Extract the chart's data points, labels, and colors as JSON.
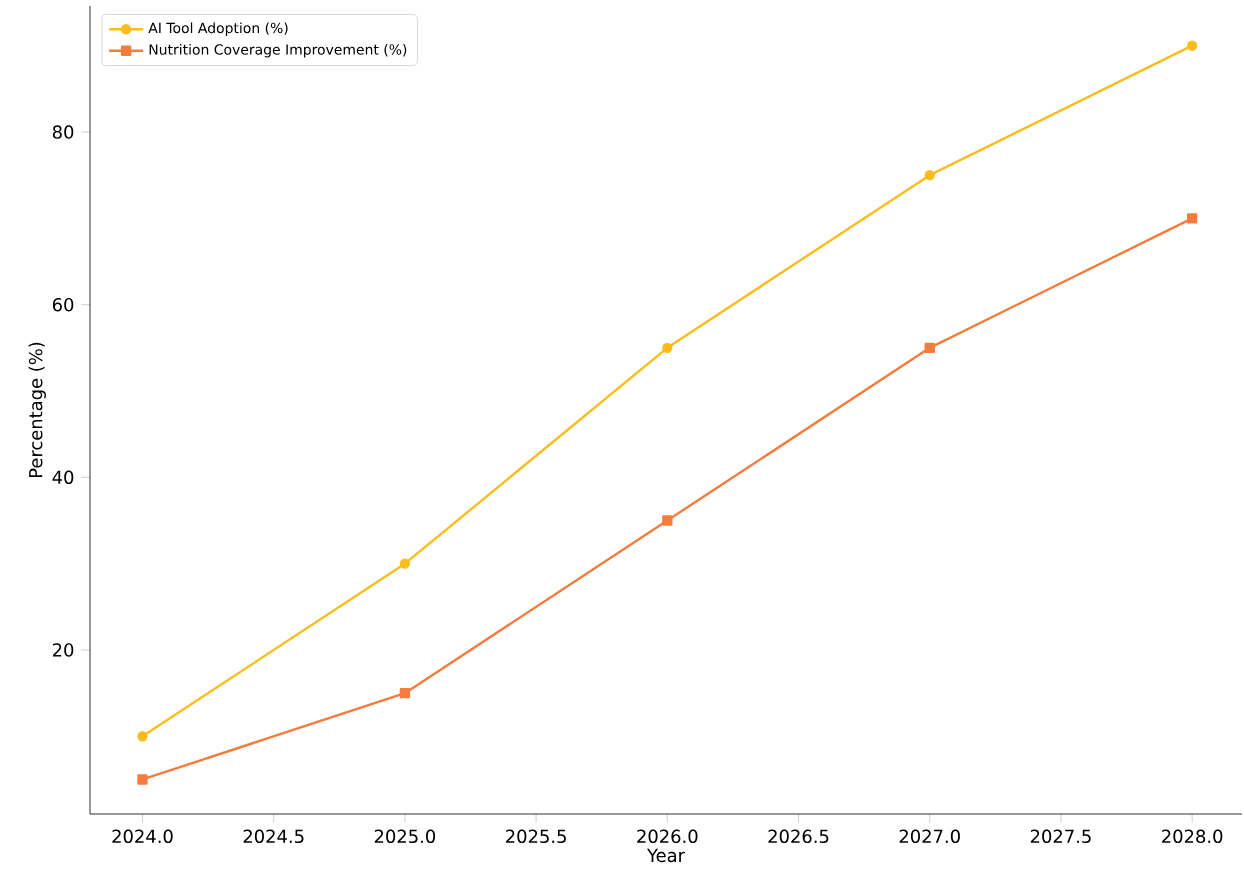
{
  "chart_data": {
    "type": "line",
    "xlabel": "Year",
    "ylabel": "Percentage (%)",
    "x": [
      2024,
      2025,
      2026,
      2027,
      2028
    ],
    "series": [
      {
        "name": "AI Tool Adoption (%)",
        "color": "#fbbc1c",
        "marker": "circle",
        "values": [
          10,
          30,
          55,
          75,
          90
        ]
      },
      {
        "name": "Nutrition Coverage Improvement (%)",
        "color": "#f47c3c",
        "marker": "square",
        "values": [
          5,
          15,
          35,
          55,
          70
        ]
      }
    ],
    "xlim": [
      2023.8,
      2028.19
    ],
    "ylim": [
      1,
      94.6
    ],
    "xticks": [
      {
        "value": 2024,
        "label": "2024.0"
      },
      {
        "value": 2024.5,
        "label": "2024.5"
      },
      {
        "value": 2025,
        "label": "2025.0"
      },
      {
        "value": 2025.5,
        "label": "2025.5"
      },
      {
        "value": 2026,
        "label": "2026.0"
      },
      {
        "value": 2026.5,
        "label": "2026.5"
      },
      {
        "value": 2027,
        "label": "2027.0"
      },
      {
        "value": 2027.5,
        "label": "2027.5"
      },
      {
        "value": 2028,
        "label": "2028.0"
      }
    ],
    "yticks": [
      20,
      40,
      60,
      80
    ],
    "legend": "top left",
    "grid": false,
    "line_style": "solid"
  }
}
